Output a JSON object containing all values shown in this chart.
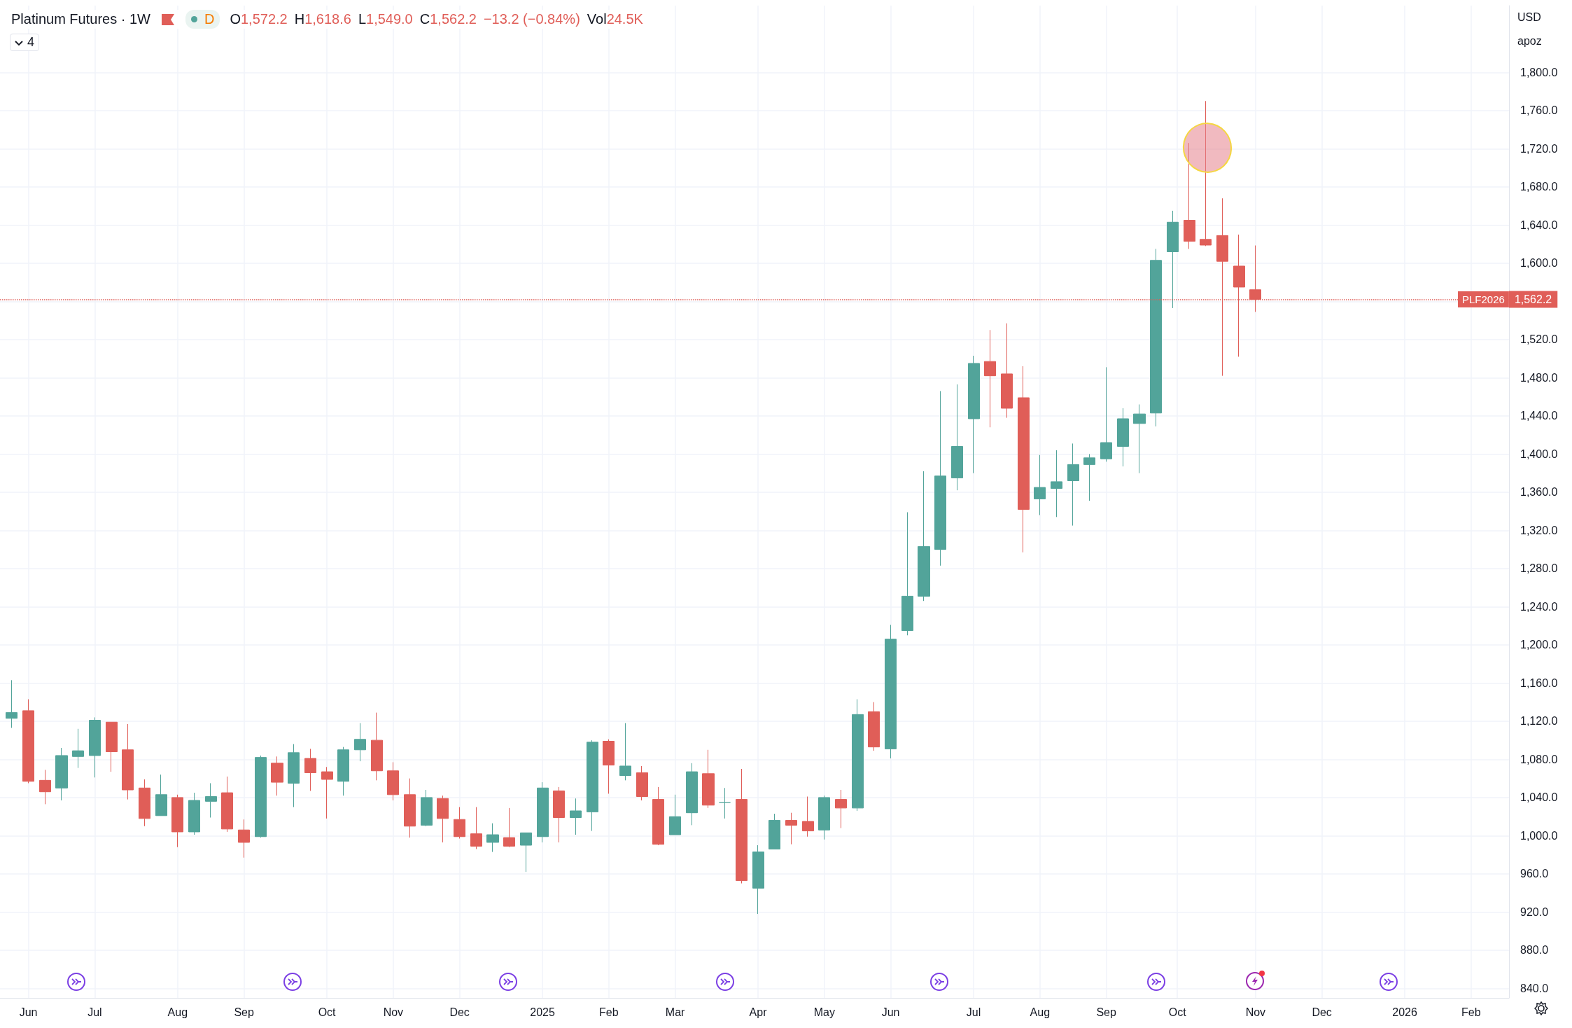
{
  "chart_data": {
    "type": "candlestick",
    "title": "Platinum Futures · 1W",
    "annotations": [
      "D",
      "O1,572.2",
      "H1,618.6",
      "L1,549.0",
      "C1,562.2",
      "−13.2 (−0.84%)",
      "Vol24.5K",
      "4",
      "USD",
      "apoz"
    ],
    "x": [
      "2024-05-27",
      "2024-06-03",
      "2024-06-10",
      "2024-06-17",
      "2024-06-24",
      "2024-07-01",
      "2024-07-08",
      "2024-07-15",
      "2024-07-22",
      "2024-07-29",
      "2024-08-05",
      "2024-08-12",
      "2024-08-19",
      "2024-08-26",
      "2024-09-02",
      "2024-09-09",
      "2024-09-16",
      "2024-09-23",
      "2024-09-30",
      "2024-10-07",
      "2024-10-14",
      "2024-10-21",
      "2024-10-28",
      "2024-11-04",
      "2024-11-11",
      "2024-11-18",
      "2024-11-25",
      "2024-12-02",
      "2024-12-09",
      "2024-12-16",
      "2024-12-23",
      "2024-12-30",
      "2025-01-06",
      "2025-01-13",
      "2025-01-20",
      "2025-01-27",
      "2025-02-03",
      "2025-02-10",
      "2025-02-17",
      "2025-02-24",
      "2025-03-03",
      "2025-03-10",
      "2025-03-17",
      "2025-03-24",
      "2025-03-31",
      "2025-04-07",
      "2025-04-14",
      "2025-04-21",
      "2025-04-28",
      "2025-05-05",
      "2025-05-12",
      "2025-05-19",
      "2025-05-26",
      "2025-06-02",
      "2025-06-09",
      "2025-06-16",
      "2025-06-23",
      "2025-06-30",
      "2025-07-07",
      "2025-07-14",
      "2025-07-21",
      "2025-07-28",
      "2025-08-04",
      "2025-08-11",
      "2025-08-18",
      "2025-08-25",
      "2025-09-01",
      "2025-09-08",
      "2025-09-15",
      "2025-09-22",
      "2025-09-29",
      "2025-10-06",
      "2025-10-13",
      "2025-10-20",
      "2025-10-27",
      "2025-11-03"
    ],
    "ohlc": [
      [
        1123,
        1163,
        1113,
        1129
      ],
      [
        1131,
        1143,
        1055,
        1057
      ],
      [
        1058,
        1069,
        1033,
        1046
      ],
      [
        1050,
        1092,
        1037,
        1084
      ],
      [
        1083,
        1112,
        1071,
        1089
      ],
      [
        1084,
        1124,
        1061,
        1121
      ],
      [
        1119,
        1119,
        1067,
        1088
      ],
      [
        1090,
        1117,
        1038,
        1048
      ],
      [
        1050,
        1059,
        1010,
        1018
      ],
      [
        1021,
        1064,
        1021,
        1043
      ],
      [
        1040,
        1043,
        988,
        1004
      ],
      [
        1004,
        1045,
        1001,
        1037
      ],
      [
        1036,
        1055,
        1019,
        1041
      ],
      [
        1045,
        1062,
        1004,
        1007
      ],
      [
        1006,
        1017,
        977,
        993
      ],
      [
        999,
        1084,
        998,
        1082
      ],
      [
        1076,
        1083,
        1042,
        1056
      ],
      [
        1055,
        1096,
        1030,
        1087
      ],
      [
        1081,
        1091,
        1047,
        1066
      ],
      [
        1067,
        1072,
        1018,
        1059
      ],
      [
        1057,
        1093,
        1042,
        1090
      ],
      [
        1090,
        1118,
        1078,
        1101
      ],
      [
        1100,
        1129,
        1058,
        1068
      ],
      [
        1068,
        1077,
        1037,
        1043
      ],
      [
        1043,
        1060,
        998,
        1010
      ],
      [
        1011,
        1048,
        1010,
        1040
      ],
      [
        1039,
        1042,
        993,
        1018
      ],
      [
        1017,
        1030,
        997,
        999
      ],
      [
        1002,
        1030,
        986,
        989
      ],
      [
        993,
        1013,
        983,
        1001
      ],
      [
        998,
        1029,
        988,
        989
      ],
      [
        990,
        1003,
        962,
        1003
      ],
      [
        999,
        1056,
        993,
        1050
      ],
      [
        1047,
        1051,
        993,
        1019
      ],
      [
        1019,
        1039,
        1001,
        1026
      ],
      [
        1025,
        1100,
        1005,
        1098
      ],
      [
        1099,
        1101,
        1044,
        1074
      ],
      [
        1063,
        1118,
        1058,
        1073
      ],
      [
        1066,
        1073,
        1037,
        1041
      ],
      [
        1038,
        1051,
        990,
        991
      ],
      [
        1001,
        1043,
        1001,
        1020
      ],
      [
        1024,
        1076,
        1011,
        1067
      ],
      [
        1065,
        1090,
        1029,
        1032
      ],
      [
        1035,
        1050,
        1018,
        1035
      ],
      [
        1038,
        1070,
        950,
        953
      ],
      [
        945,
        990,
        918,
        983
      ],
      [
        986,
        1023,
        986,
        1016
      ],
      [
        1016,
        1024,
        991,
        1011
      ],
      [
        1015,
        1041,
        999,
        1005
      ],
      [
        1006,
        1042,
        996,
        1040
      ],
      [
        1038,
        1048,
        1008,
        1029
      ],
      [
        1029,
        1143,
        1026,
        1127
      ],
      [
        1130,
        1140,
        1089,
        1093
      ],
      [
        1091,
        1221,
        1081,
        1206
      ],
      [
        1215,
        1339,
        1210,
        1251
      ],
      [
        1251,
        1382,
        1246,
        1303
      ],
      [
        1300,
        1466,
        1283,
        1377
      ],
      [
        1375,
        1473,
        1362,
        1408
      ],
      [
        1437,
        1503,
        1380,
        1495
      ],
      [
        1497,
        1530,
        1428,
        1482
      ],
      [
        1484,
        1537,
        1438,
        1448
      ],
      [
        1459,
        1492,
        1297,
        1342
      ],
      [
        1353,
        1399,
        1336,
        1365
      ],
      [
        1364,
        1404,
        1334,
        1371
      ],
      [
        1372,
        1411,
        1325,
        1389
      ],
      [
        1389,
        1400,
        1351,
        1396
      ],
      [
        1395,
        1491,
        1392,
        1412
      ],
      [
        1408,
        1448,
        1387,
        1437
      ],
      [
        1432,
        1452,
        1380,
        1442
      ],
      [
        1443,
        1615,
        1429,
        1603
      ],
      [
        1612,
        1655,
        1553,
        1643
      ],
      [
        1645,
        1726,
        1615,
        1623
      ],
      [
        1625,
        1770,
        1618,
        1619
      ],
      [
        1629,
        1668,
        1482,
        1602
      ],
      [
        1597,
        1630,
        1502,
        1575
      ],
      [
        1572.2,
        1618.6,
        1549.0,
        1562.2
      ]
    ],
    "xlim": [
      "2024-05-22",
      "2026-02-18"
    ],
    "xticks": [
      {
        "value": "2024-06-03",
        "label": "Jun"
      },
      {
        "value": "2024-07-01",
        "label": "Jul"
      },
      {
        "value": "2024-08-05",
        "label": "Aug"
      },
      {
        "value": "2024-09-02",
        "label": "Sep"
      },
      {
        "value": "2024-10-07",
        "label": "Oct"
      },
      {
        "value": "2024-11-04",
        "label": "Nov"
      },
      {
        "value": "2024-12-02",
        "label": "Dec"
      },
      {
        "value": "2025-01-06",
        "label": "2025"
      },
      {
        "value": "2025-02-03",
        "label": "Feb"
      },
      {
        "value": "2025-03-03",
        "label": "Mar"
      },
      {
        "value": "2025-04-07",
        "label": "Apr"
      },
      {
        "value": "2025-05-05",
        "label": "May"
      },
      {
        "value": "2025-06-02",
        "label": "Jun"
      },
      {
        "value": "2025-07-07",
        "label": "Jul"
      },
      {
        "value": "2025-08-04",
        "label": "Aug"
      },
      {
        "value": "2025-09-01",
        "label": "Sep"
      },
      {
        "value": "2025-10-01",
        "label": "Oct"
      },
      {
        "value": "2025-11-03",
        "label": "Nov"
      },
      {
        "value": "2025-12-01",
        "label": "Dec"
      },
      {
        "value": "2026-01-05",
        "label": "2026"
      },
      {
        "value": "2026-02-02",
        "label": "Feb"
      }
    ],
    "ylim": [
      830,
      1870
    ],
    "yticks": [
      {
        "value": 840,
        "label": "840.0"
      },
      {
        "value": 880,
        "label": "880.0"
      },
      {
        "value": 920,
        "label": "920.0"
      },
      {
        "value": 960,
        "label": "960.0"
      },
      {
        "value": 1000,
        "label": "1,000.0"
      },
      {
        "value": 1040,
        "label": "1,040.0"
      },
      {
        "value": 1080,
        "label": "1,080.0"
      },
      {
        "value": 1120,
        "label": "1,120.0"
      },
      {
        "value": 1160,
        "label": "1,160.0"
      },
      {
        "value": 1200,
        "label": "1,200.0"
      },
      {
        "value": 1240,
        "label": "1,240.0"
      },
      {
        "value": 1280,
        "label": "1,280.0"
      },
      {
        "value": 1320,
        "label": "1,320.0"
      },
      {
        "value": 1360,
        "label": "1,360.0"
      },
      {
        "value": 1400,
        "label": "1,400.0"
      },
      {
        "value": 1440,
        "label": "1,440.0"
      },
      {
        "value": 1480,
        "label": "1,480.0"
      },
      {
        "value": 1520,
        "label": "1,520.0"
      },
      {
        "value": 1560,
        "label": null
      },
      {
        "value": 1600,
        "label": "1,600.0"
      },
      {
        "value": 1640,
        "label": "1,640.0"
      },
      {
        "value": 1680,
        "label": "1,680.0"
      },
      {
        "value": 1720,
        "label": "1,720.0"
      },
      {
        "value": 1760,
        "label": "1,760.0"
      },
      {
        "value": 1800,
        "label": "1,800.0"
      }
    ],
    "ref_lines": [
      {
        "axis": "y",
        "value": 1562.2,
        "label": "PLF2026 1,562.2",
        "color": "#e05e58",
        "line_style": "dotted"
      }
    ],
    "grid": true
  }
}
